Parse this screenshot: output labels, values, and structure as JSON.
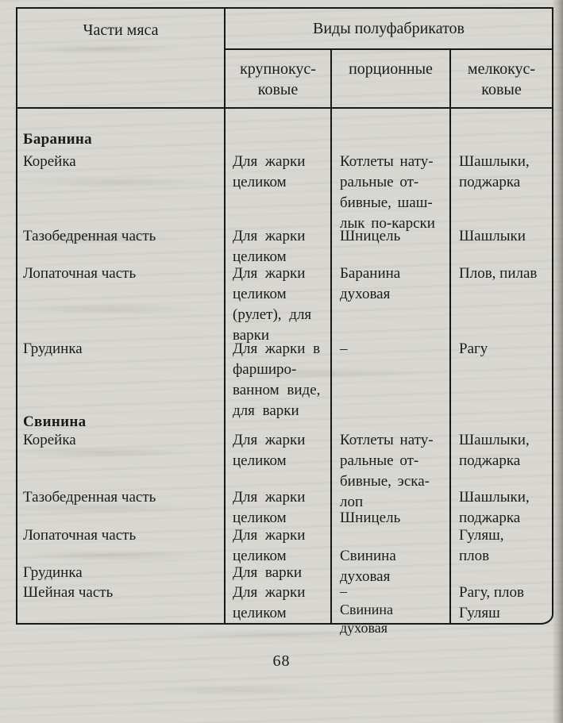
{
  "page": {
    "number": "68"
  },
  "table": {
    "header": {
      "col1": "Части мяса",
      "group": "Виды полуфабрикатов",
      "sub": [
        "крупнокус-\nковые",
        "порционные",
        "мелкокус-\nковые"
      ]
    },
    "rows": [
      {
        "cells": [
          "Баранина",
          "",
          "",
          ""
        ]
      },
      {
        "cells": [
          "Корейка",
          "Для жарки\nцеликом",
          "Котлеты нату-\nральные от-\nбивные, шаш-\nлык по-карски",
          "Шашлыки,\nподжарка"
        ]
      },
      {
        "cells": [
          "Тазобедренная часть",
          "Для жарки\nцеликом",
          "Шницель",
          "Шашлыки"
        ]
      },
      {
        "cells": [
          "Лопаточная часть",
          "Для жарки\nцеликом\n(рулет), для\nварки",
          "Баранина\nдуховая",
          "Плов, пилав"
        ]
      },
      {
        "cells": [
          "Грудинка",
          "Для жарки в\nфарширо-\nванном виде,\nдля варки",
          "–",
          "Рагу"
        ]
      },
      {
        "cells": [
          "Свинина",
          "",
          "",
          ""
        ]
      },
      {
        "cells": [
          "Корейка",
          "Для жарки\nцеликом",
          "Котлеты нату-\nральные от-\nбивные, эска-\nлоп",
          "Шашлыки,\nподжарка"
        ]
      },
      {
        "cells": [
          "Тазобедренная часть",
          "Для жарки\nцеликом",
          "\nШницель",
          "Шашлыки,\nподжарка"
        ]
      },
      {
        "cells": [
          "Лопаточная часть",
          "Для жарки\nцеликом",
          "\nСвинина\nдуховая",
          "Гуляш,\nплов"
        ]
      },
      {
        "cells": [
          "Грудинка",
          "Для варки",
          "",
          ""
        ]
      },
      {
        "cells": [
          "Шейная часть",
          "Для жарки\nцеликом",
          "–\nСвинина\nдуховая",
          "Рагу, плов\nГуляш"
        ]
      }
    ]
  }
}
